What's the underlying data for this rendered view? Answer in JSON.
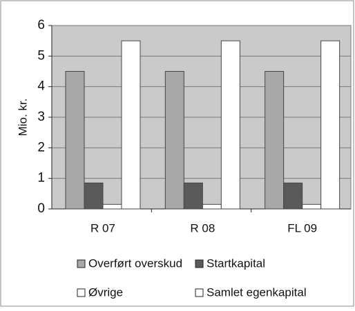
{
  "chart_data": {
    "type": "bar",
    "y_label": "Mio. kr.",
    "categories": [
      "R 07",
      "R 08",
      "FL 09"
    ],
    "series": [
      {
        "name": "Overført overskud",
        "color": "#a8a8a8",
        "values": [
          4.5,
          4.5,
          4.5
        ]
      },
      {
        "name": "Startkapital",
        "color": "#5a5a5a",
        "values": [
          0.85,
          0.85,
          0.85
        ]
      },
      {
        "name": "Øvrige",
        "color": "#ffffff",
        "values": [
          0.15,
          0.15,
          0.15
        ]
      },
      {
        "name": "Samlet egenkapital",
        "color": "#ffffff",
        "values": [
          5.5,
          5.5,
          5.5
        ]
      }
    ],
    "ylim": [
      0,
      6
    ],
    "yticks": [
      0,
      1,
      2,
      3,
      4,
      5,
      6
    ],
    "grid": true
  }
}
